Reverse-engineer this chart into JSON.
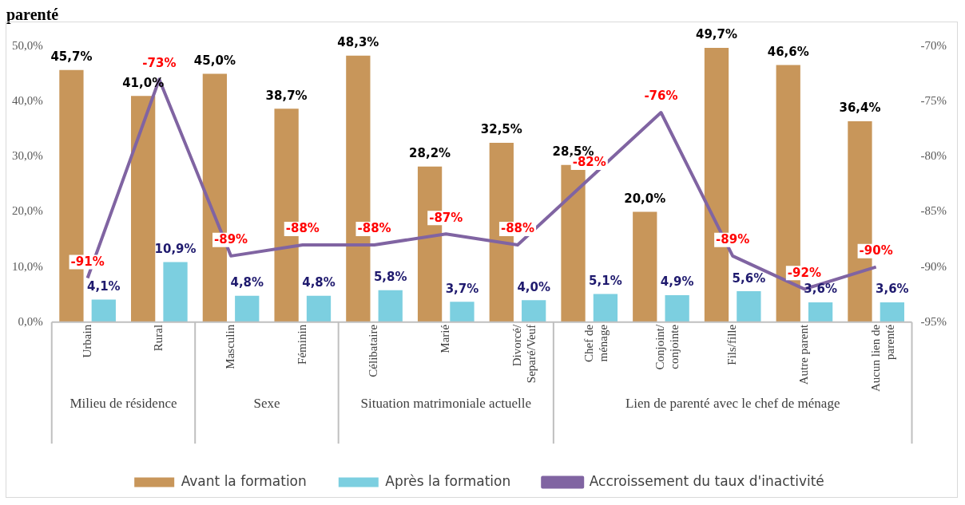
{
  "chart_data": {
    "type": "bar",
    "title": "parenté",
    "categories": [
      "Urbain",
      "Rural",
      "Masculin",
      "Féminin",
      "Célibataire",
      "Marié",
      "Divorcé/ Separé/Veuf",
      "Chef de ménage",
      "Conjoint/ conjointe",
      "Fils/fille",
      "Autre parent",
      "Aucun lien de parenté"
    ],
    "series": [
      {
        "name": "Avant la formation",
        "color": "#c8965a",
        "values": [
          45.7,
          41.0,
          45.0,
          38.7,
          48.3,
          28.2,
          32.5,
          28.5,
          20.0,
          49.7,
          46.6,
          36.4
        ],
        "value_labels": [
          "45,7%",
          "41,0%",
          "45,0%",
          "38,7%",
          "48,3%",
          "28,2%",
          "32,5%",
          "28,5%",
          "20,0%",
          "49,7%",
          "46,6%",
          "36,4%"
        ]
      },
      {
        "name": "Après la formation",
        "color": "#7ccfe0",
        "values": [
          4.1,
          10.9,
          4.8,
          4.8,
          5.8,
          3.7,
          4.0,
          5.1,
          4.9,
          5.6,
          3.6,
          3.6
        ],
        "value_labels": [
          "4,1%",
          "10,9%",
          "4,8%",
          "4,8%",
          "5,8%",
          "3,7%",
          "4,0%",
          "5,1%",
          "4,9%",
          "5,6%",
          "3,6%",
          "3,6%"
        ]
      },
      {
        "name": "Accroissement du taux d'inactivité",
        "type": "line",
        "axis": "y2",
        "color": "#8064a2",
        "values": [
          -91,
          -73,
          -89,
          -88,
          -88,
          -87,
          -88,
          -82,
          -76,
          -89,
          -92,
          -90
        ],
        "value_labels": [
          "-91%",
          "-73%",
          "-89%",
          "-88%",
          "-88%",
          "-87%",
          "-88%",
          "-82%",
          "-76%",
          "-89%",
          "-92%",
          "-90%"
        ]
      }
    ],
    "ylim": [
      0,
      50
    ],
    "yticks": [
      {
        "value": 0,
        "label": "0,0%"
      },
      {
        "value": 10,
        "label": "10,0%"
      },
      {
        "value": 20,
        "label": "20,0%"
      },
      {
        "value": 30,
        "label": "30,0%"
      },
      {
        "value": 40,
        "label": "40,0%"
      },
      {
        "value": 50,
        "label": "50,0%"
      }
    ],
    "y2lim": [
      -95,
      -70
    ],
    "y2ticks": [
      {
        "value": -95,
        "label": "-95%"
      },
      {
        "value": -90,
        "label": "-90%"
      },
      {
        "value": -85,
        "label": "-85%"
      },
      {
        "value": -80,
        "label": "-80%"
      },
      {
        "value": -75,
        "label": "-75%"
      },
      {
        "value": -70,
        "label": "-70%"
      }
    ],
    "annotations": [
      "Milieu de résidence",
      "Sexe",
      "Situation matrimoniale actuelle",
      "Lien de parenté avec le chef de ménage"
    ],
    "legend": "bottom",
    "grid": false,
    "marker": "none",
    "line_style": "solid"
  }
}
